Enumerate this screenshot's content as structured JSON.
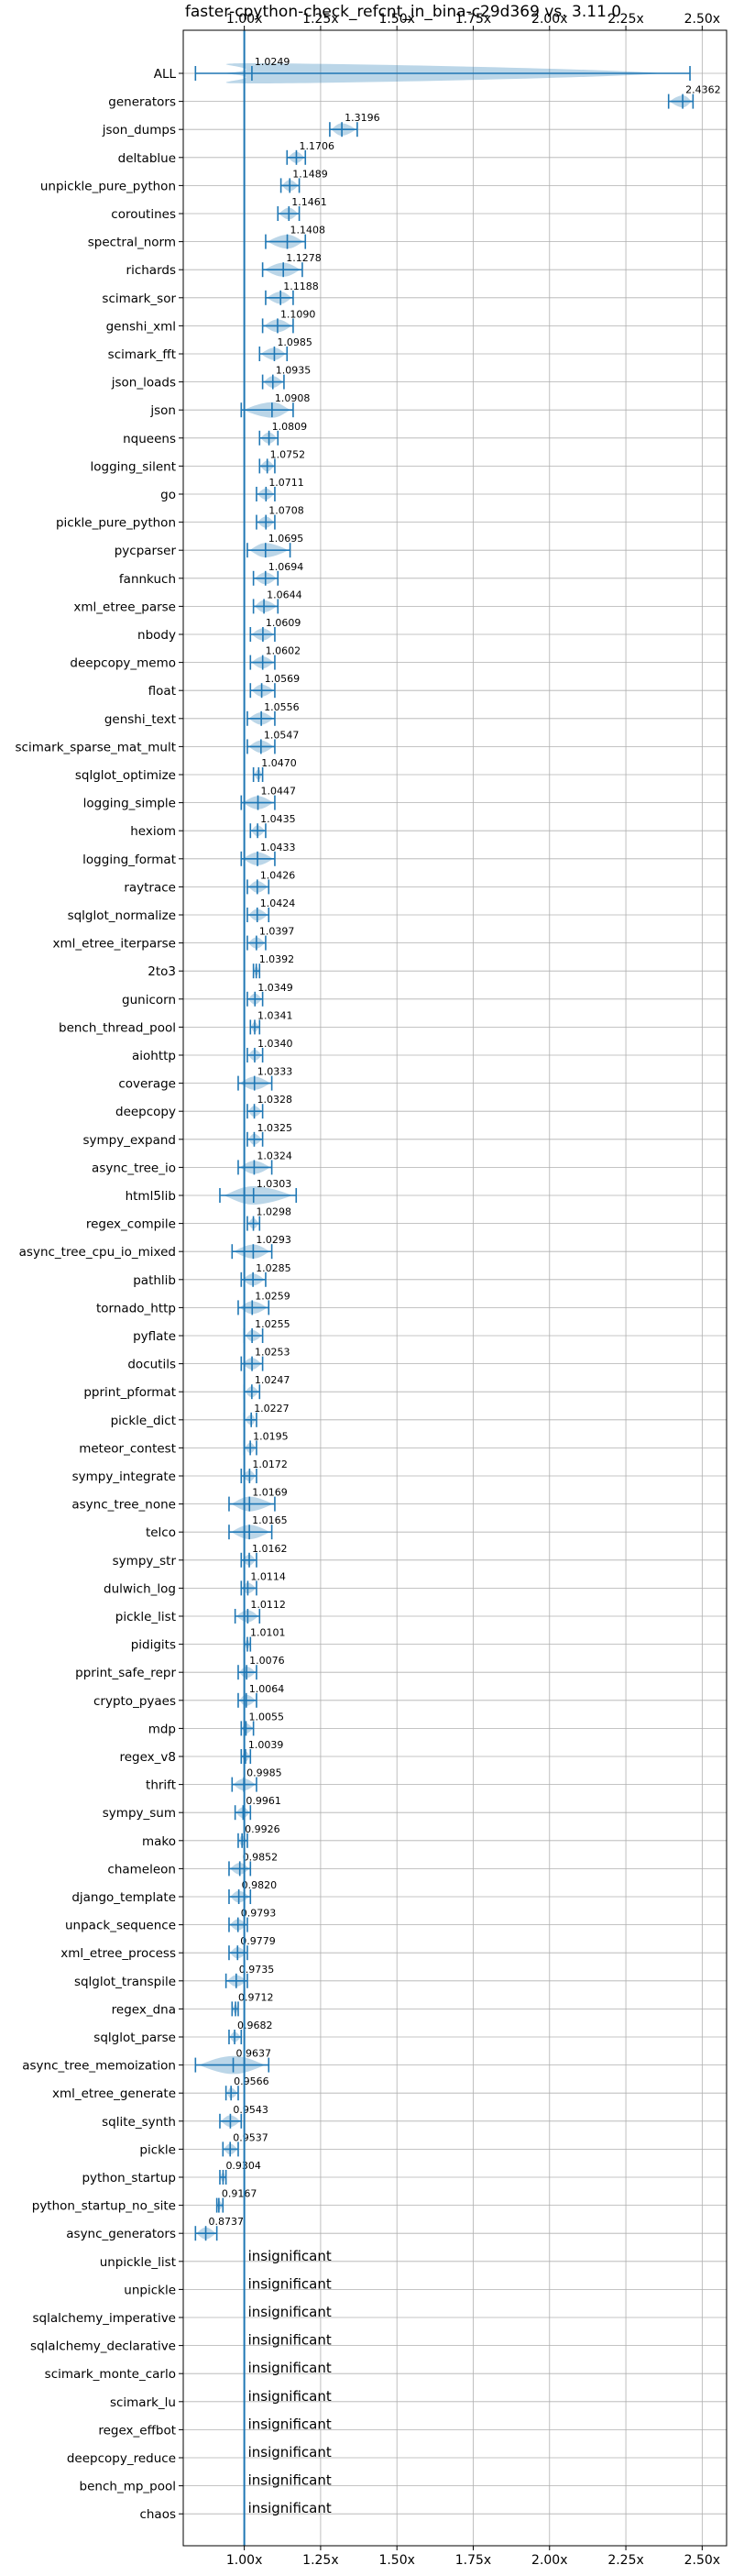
{
  "chart_data": {
    "type": "violin",
    "title": "faster-cpython-check_refcnt_in_bina-c29d369 vs. 3.11.0",
    "x_ticks": [
      "1.00x",
      "1.25x",
      "1.50x",
      "1.75x",
      "2.00x",
      "2.25x",
      "2.50x"
    ],
    "x_tick_values": [
      1.0,
      1.25,
      1.5,
      1.75,
      2.0,
      2.25,
      2.5
    ],
    "xlim": [
      0.8,
      2.58
    ],
    "grid": true,
    "reference_line": 1.0,
    "color": "#1f77b4",
    "insignificant_label": "insignificant",
    "benchmarks": [
      {
        "name": "ALL",
        "value": 1.0249,
        "label": "1.0249",
        "lo": 0.84,
        "hi": 2.46
      },
      {
        "name": "generators",
        "value": 2.4362,
        "label": "2.4362",
        "lo": 2.39,
        "hi": 2.47
      },
      {
        "name": "json_dumps",
        "value": 1.3196,
        "label": "1.3196",
        "lo": 1.28,
        "hi": 1.37
      },
      {
        "name": "deltablue",
        "value": 1.1706,
        "label": "1.1706",
        "lo": 1.14,
        "hi": 1.2
      },
      {
        "name": "unpickle_pure_python",
        "value": 1.1489,
        "label": "1.1489",
        "lo": 1.12,
        "hi": 1.18
      },
      {
        "name": "coroutines",
        "value": 1.1461,
        "label": "1.1461",
        "lo": 1.11,
        "hi": 1.18
      },
      {
        "name": "spectral_norm",
        "value": 1.1408,
        "label": "1.1408",
        "lo": 1.07,
        "hi": 1.2
      },
      {
        "name": "richards",
        "value": 1.1278,
        "label": "1.1278",
        "lo": 1.06,
        "hi": 1.19
      },
      {
        "name": "scimark_sor",
        "value": 1.1188,
        "label": "1.1188",
        "lo": 1.07,
        "hi": 1.16
      },
      {
        "name": "genshi_xml",
        "value": 1.109,
        "label": "1.1090",
        "lo": 1.06,
        "hi": 1.16
      },
      {
        "name": "scimark_fft",
        "value": 1.0985,
        "label": "1.0985",
        "lo": 1.05,
        "hi": 1.14
      },
      {
        "name": "json_loads",
        "value": 1.0935,
        "label": "1.0935",
        "lo": 1.06,
        "hi": 1.13
      },
      {
        "name": "json",
        "value": 1.0908,
        "label": "1.0908",
        "lo": 0.99,
        "hi": 1.16
      },
      {
        "name": "nqueens",
        "value": 1.0809,
        "label": "1.0809",
        "lo": 1.05,
        "hi": 1.11
      },
      {
        "name": "logging_silent",
        "value": 1.0752,
        "label": "1.0752",
        "lo": 1.05,
        "hi": 1.1
      },
      {
        "name": "go",
        "value": 1.0711,
        "label": "1.0711",
        "lo": 1.04,
        "hi": 1.1
      },
      {
        "name": "pickle_pure_python",
        "value": 1.0708,
        "label": "1.0708",
        "lo": 1.04,
        "hi": 1.1
      },
      {
        "name": "pycparser",
        "value": 1.0695,
        "label": "1.0695",
        "lo": 1.01,
        "hi": 1.15
      },
      {
        "name": "fannkuch",
        "value": 1.0694,
        "label": "1.0694",
        "lo": 1.03,
        "hi": 1.11
      },
      {
        "name": "xml_etree_parse",
        "value": 1.0644,
        "label": "1.0644",
        "lo": 1.03,
        "hi": 1.11
      },
      {
        "name": "nbody",
        "value": 1.0609,
        "label": "1.0609",
        "lo": 1.02,
        "hi": 1.1
      },
      {
        "name": "deepcopy_memo",
        "value": 1.0602,
        "label": "1.0602",
        "lo": 1.02,
        "hi": 1.1
      },
      {
        "name": "float",
        "value": 1.0569,
        "label": "1.0569",
        "lo": 1.02,
        "hi": 1.1
      },
      {
        "name": "genshi_text",
        "value": 1.0556,
        "label": "1.0556",
        "lo": 1.01,
        "hi": 1.1
      },
      {
        "name": "scimark_sparse_mat_mult",
        "value": 1.0547,
        "label": "1.0547",
        "lo": 1.01,
        "hi": 1.1
      },
      {
        "name": "sqlglot_optimize",
        "value": 1.047,
        "label": "1.0470",
        "lo": 1.03,
        "hi": 1.06
      },
      {
        "name": "logging_simple",
        "value": 1.0447,
        "label": "1.0447",
        "lo": 0.99,
        "hi": 1.1
      },
      {
        "name": "hexiom",
        "value": 1.0435,
        "label": "1.0435",
        "lo": 1.02,
        "hi": 1.07
      },
      {
        "name": "logging_format",
        "value": 1.0433,
        "label": "1.0433",
        "lo": 0.99,
        "hi": 1.1
      },
      {
        "name": "raytrace",
        "value": 1.0426,
        "label": "1.0426",
        "lo": 1.01,
        "hi": 1.08
      },
      {
        "name": "sqlglot_normalize",
        "value": 1.0424,
        "label": "1.0424",
        "lo": 1.01,
        "hi": 1.08
      },
      {
        "name": "xml_etree_iterparse",
        "value": 1.0397,
        "label": "1.0397",
        "lo": 1.01,
        "hi": 1.07
      },
      {
        "name": "2to3",
        "value": 1.0392,
        "label": "1.0392",
        "lo": 1.03,
        "hi": 1.05
      },
      {
        "name": "gunicorn",
        "value": 1.0349,
        "label": "1.0349",
        "lo": 1.01,
        "hi": 1.06
      },
      {
        "name": "bench_thread_pool",
        "value": 1.0341,
        "label": "1.0341",
        "lo": 1.02,
        "hi": 1.05
      },
      {
        "name": "aiohttp",
        "value": 1.034,
        "label": "1.0340",
        "lo": 1.01,
        "hi": 1.06
      },
      {
        "name": "coverage",
        "value": 1.0333,
        "label": "1.0333",
        "lo": 0.98,
        "hi": 1.09
      },
      {
        "name": "deepcopy",
        "value": 1.0328,
        "label": "1.0328",
        "lo": 1.01,
        "hi": 1.06
      },
      {
        "name": "sympy_expand",
        "value": 1.0325,
        "label": "1.0325",
        "lo": 1.01,
        "hi": 1.06
      },
      {
        "name": "async_tree_io",
        "value": 1.0324,
        "label": "1.0324",
        "lo": 0.98,
        "hi": 1.09
      },
      {
        "name": "html5lib",
        "value": 1.0303,
        "label": "1.0303",
        "lo": 0.92,
        "hi": 1.17
      },
      {
        "name": "regex_compile",
        "value": 1.0298,
        "label": "1.0298",
        "lo": 1.01,
        "hi": 1.05
      },
      {
        "name": "async_tree_cpu_io_mixed",
        "value": 1.0293,
        "label": "1.0293",
        "lo": 0.96,
        "hi": 1.09
      },
      {
        "name": "pathlib",
        "value": 1.0285,
        "label": "1.0285",
        "lo": 0.99,
        "hi": 1.07
      },
      {
        "name": "tornado_http",
        "value": 1.0259,
        "label": "1.0259",
        "lo": 0.98,
        "hi": 1.08
      },
      {
        "name": "pyflate",
        "value": 1.0255,
        "label": "1.0255",
        "lo": 1.0,
        "hi": 1.06
      },
      {
        "name": "docutils",
        "value": 1.0253,
        "label": "1.0253",
        "lo": 0.99,
        "hi": 1.06
      },
      {
        "name": "pprint_pformat",
        "value": 1.0247,
        "label": "1.0247",
        "lo": 1.0,
        "hi": 1.05
      },
      {
        "name": "pickle_dict",
        "value": 1.0227,
        "label": "1.0227",
        "lo": 1.0,
        "hi": 1.04
      },
      {
        "name": "meteor_contest",
        "value": 1.0195,
        "label": "1.0195",
        "lo": 1.0,
        "hi": 1.04
      },
      {
        "name": "sympy_integrate",
        "value": 1.0172,
        "label": "1.0172",
        "lo": 0.99,
        "hi": 1.04
      },
      {
        "name": "async_tree_none",
        "value": 1.0169,
        "label": "1.0169",
        "lo": 0.95,
        "hi": 1.1
      },
      {
        "name": "telco",
        "value": 1.0165,
        "label": "1.0165",
        "lo": 0.95,
        "hi": 1.09
      },
      {
        "name": "sympy_str",
        "value": 1.0162,
        "label": "1.0162",
        "lo": 0.99,
        "hi": 1.04
      },
      {
        "name": "dulwich_log",
        "value": 1.0114,
        "label": "1.0114",
        "lo": 0.99,
        "hi": 1.04
      },
      {
        "name": "pickle_list",
        "value": 1.0112,
        "label": "1.0112",
        "lo": 0.97,
        "hi": 1.05
      },
      {
        "name": "pidigits",
        "value": 1.0101,
        "label": "1.0101",
        "lo": 1.0,
        "hi": 1.02
      },
      {
        "name": "pprint_safe_repr",
        "value": 1.0076,
        "label": "1.0076",
        "lo": 0.98,
        "hi": 1.04
      },
      {
        "name": "crypto_pyaes",
        "value": 1.0064,
        "label": "1.0064",
        "lo": 0.98,
        "hi": 1.04
      },
      {
        "name": "mdp",
        "value": 1.0055,
        "label": "1.0055",
        "lo": 0.99,
        "hi": 1.03
      },
      {
        "name": "regex_v8",
        "value": 1.0039,
        "label": "1.0039",
        "lo": 0.99,
        "hi": 1.02
      },
      {
        "name": "thrift",
        "value": 0.9985,
        "label": "0.9985",
        "lo": 0.96,
        "hi": 1.04
      },
      {
        "name": "sympy_sum",
        "value": 0.9961,
        "label": "0.9961",
        "lo": 0.97,
        "hi": 1.02
      },
      {
        "name": "mako",
        "value": 0.9926,
        "label": "0.9926",
        "lo": 0.98,
        "hi": 1.01
      },
      {
        "name": "chameleon",
        "value": 0.9852,
        "label": "0.9852",
        "lo": 0.95,
        "hi": 1.02
      },
      {
        "name": "django_template",
        "value": 0.982,
        "label": "0.9820",
        "lo": 0.95,
        "hi": 1.02
      },
      {
        "name": "unpack_sequence",
        "value": 0.9793,
        "label": "0.9793",
        "lo": 0.95,
        "hi": 1.01
      },
      {
        "name": "xml_etree_process",
        "value": 0.9779,
        "label": "0.9779",
        "lo": 0.95,
        "hi": 1.01
      },
      {
        "name": "sqlglot_transpile",
        "value": 0.9735,
        "label": "0.9735",
        "lo": 0.94,
        "hi": 1.01
      },
      {
        "name": "regex_dna",
        "value": 0.9712,
        "label": "0.9712",
        "lo": 0.96,
        "hi": 0.98
      },
      {
        "name": "sqlglot_parse",
        "value": 0.9682,
        "label": "0.9682",
        "lo": 0.95,
        "hi": 0.99
      },
      {
        "name": "async_tree_memoization",
        "value": 0.9637,
        "label": "0.9637",
        "lo": 0.84,
        "hi": 1.08
      },
      {
        "name": "xml_etree_generate",
        "value": 0.9566,
        "label": "0.9566",
        "lo": 0.94,
        "hi": 0.98
      },
      {
        "name": "sqlite_synth",
        "value": 0.9543,
        "label": "0.9543",
        "lo": 0.92,
        "hi": 0.99
      },
      {
        "name": "pickle",
        "value": 0.9537,
        "label": "0.9537",
        "lo": 0.93,
        "hi": 0.98
      },
      {
        "name": "python_startup",
        "value": 0.9304,
        "label": "0.9304",
        "lo": 0.92,
        "hi": 0.94
      },
      {
        "name": "python_startup_no_site",
        "value": 0.9167,
        "label": "0.9167",
        "lo": 0.91,
        "hi": 0.93
      },
      {
        "name": "async_generators",
        "value": 0.8737,
        "label": "0.8737",
        "lo": 0.84,
        "hi": 0.91
      },
      {
        "name": "unpickle_list",
        "insignificant": true
      },
      {
        "name": "unpickle",
        "insignificant": true
      },
      {
        "name": "sqlalchemy_imperative",
        "insignificant": true
      },
      {
        "name": "sqlalchemy_declarative",
        "insignificant": true
      },
      {
        "name": "scimark_monte_carlo",
        "insignificant": true
      },
      {
        "name": "scimark_lu",
        "insignificant": true
      },
      {
        "name": "regex_effbot",
        "insignificant": true
      },
      {
        "name": "deepcopy_reduce",
        "insignificant": true
      },
      {
        "name": "bench_mp_pool",
        "insignificant": true
      },
      {
        "name": "chaos",
        "insignificant": true
      }
    ]
  }
}
